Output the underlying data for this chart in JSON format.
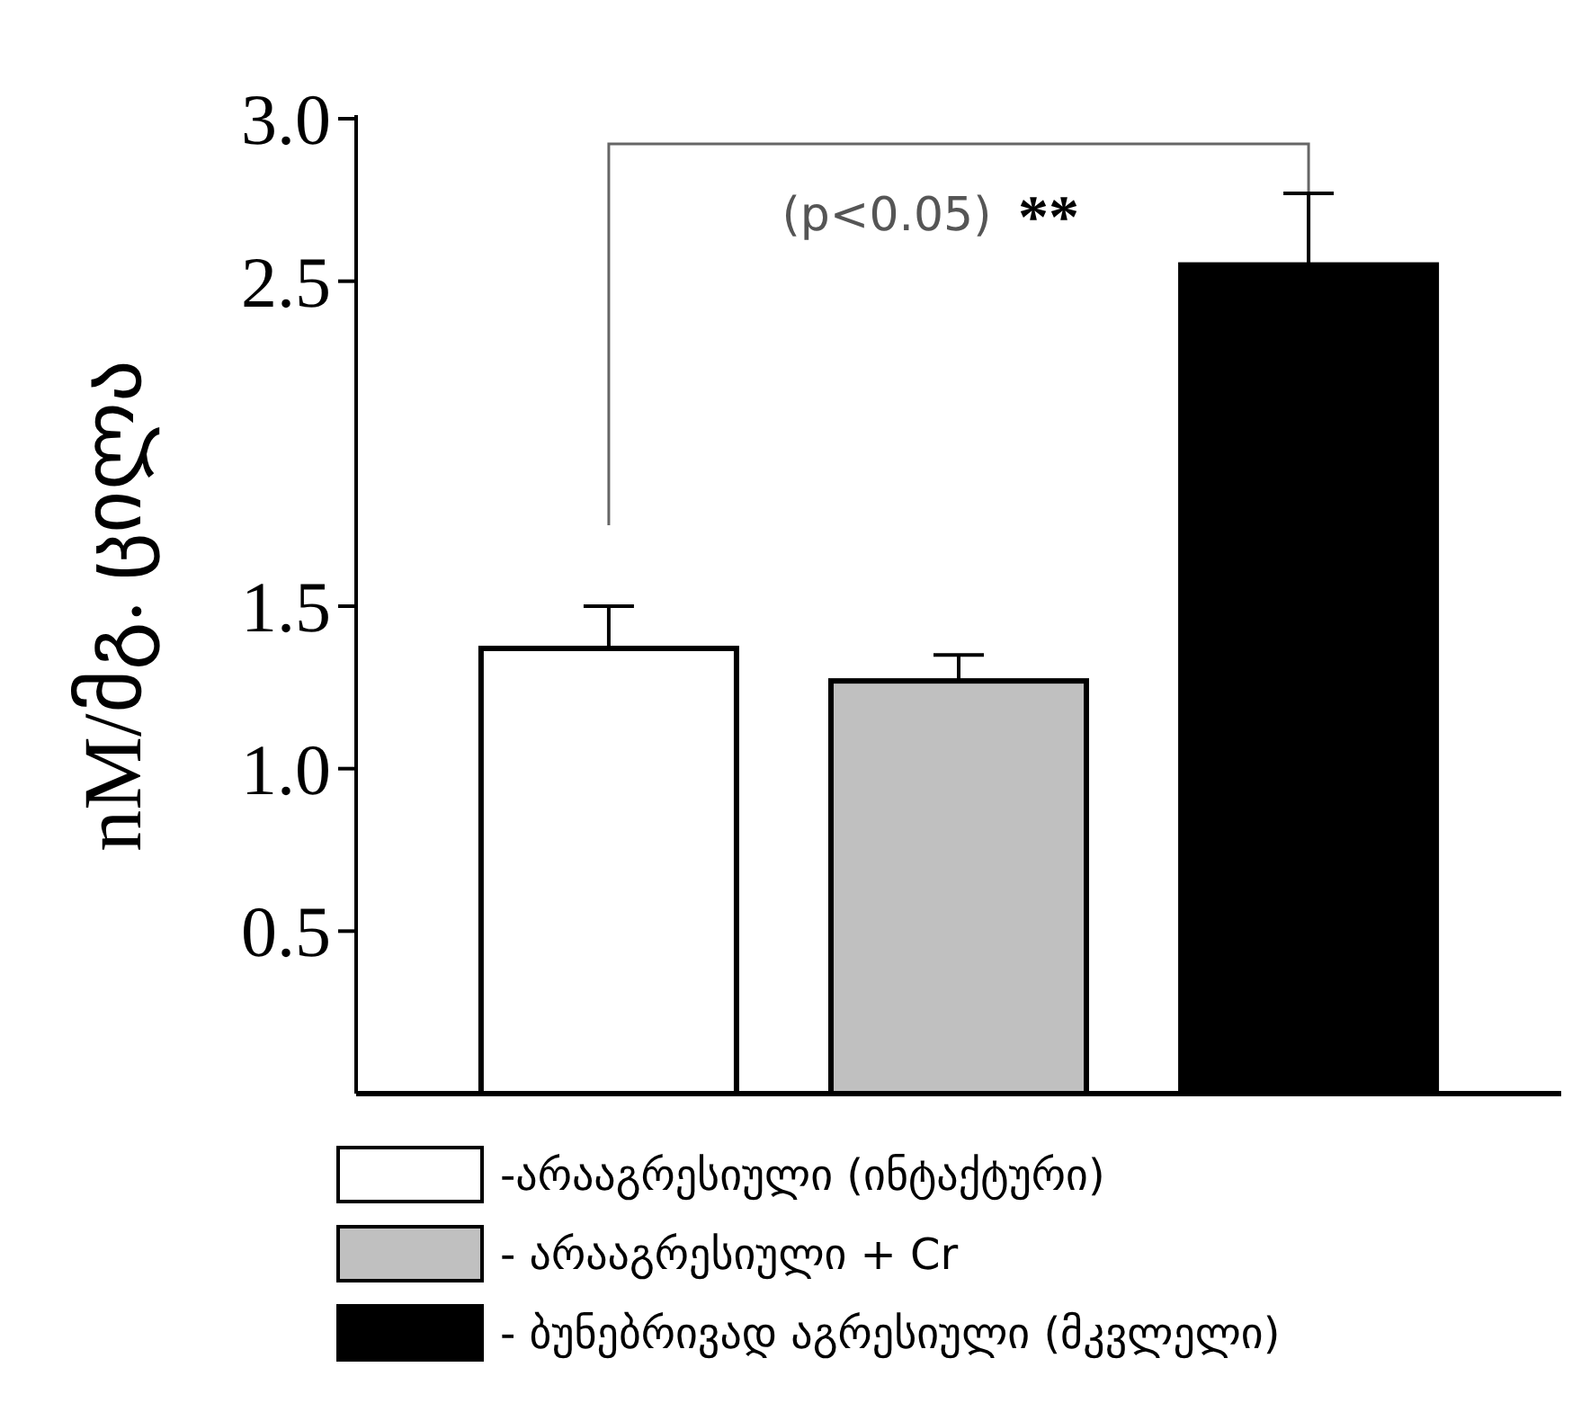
{
  "chart_data": {
    "type": "bar",
    "ylabel": "nM/მგ. ცილა",
    "categories": [
      null,
      null,
      null
    ],
    "series": [
      {
        "name": "-არააგრესიული (ინტაქტური)",
        "color": "#ffffff",
        "values": [
          1.37,
          null,
          null
        ],
        "errors": [
          [
            1.37,
            1.5
          ],
          null,
          null
        ]
      },
      {
        "name": "- არააგრესიული + Cr",
        "color": "#c0c0c0",
        "values": [
          null,
          1.27,
          null
        ],
        "errors": [
          null,
          [
            1.27,
            1.35
          ],
          null
        ]
      },
      {
        "name": "- ბუნებრივად აგრესიული (მკვლელი)",
        "color": "#000000",
        "values": [
          null,
          null,
          2.55
        ],
        "errors": [
          null,
          null,
          [
            2.55,
            2.77
          ]
        ]
      }
    ],
    "ylim": [
      0,
      3.0
    ],
    "yticks": [
      {
        "value": 0.5,
        "label": "0.5"
      },
      {
        "value": 1,
        "label": "1.0"
      },
      {
        "value": 1.5,
        "label": "1.5"
      },
      {
        "value": 2.5,
        "label": "2.5"
      },
      {
        "value": 3,
        "label": "3.0"
      }
    ],
    "grid": false,
    "legend": "bottom",
    "annotations": [
      "(p<0.05)",
      "**"
    ]
  }
}
